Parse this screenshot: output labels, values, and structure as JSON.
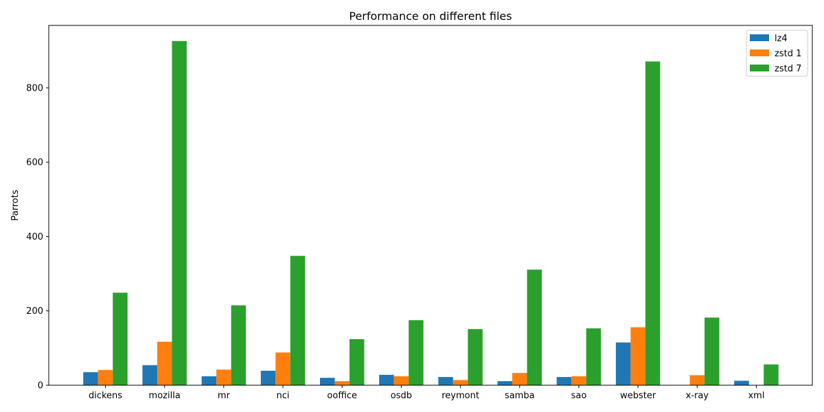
{
  "chart_data": {
    "type": "bar",
    "title": "Performance on different files",
    "xlabel": "",
    "ylabel": "Parrots",
    "categories": [
      "dickens",
      "mozilla",
      "mr",
      "nci",
      "ooffice",
      "osdb",
      "reymont",
      "samba",
      "sao",
      "webster",
      "x-ray",
      "xml"
    ],
    "series": [
      {
        "name": "lz4",
        "color": "#1f77b4",
        "values": [
          35,
          54,
          24,
          39,
          20,
          28,
          22,
          11,
          22,
          115,
          0,
          12
        ]
      },
      {
        "name": "zstd 1",
        "color": "#ff7f0e",
        "values": [
          41,
          117,
          42,
          88,
          11,
          24,
          14,
          33,
          24,
          156,
          27,
          0
        ]
      },
      {
        "name": "zstd 7",
        "color": "#2ca02c",
        "values": [
          249,
          926,
          215,
          348,
          124,
          175,
          151,
          311,
          153,
          871,
          182,
          56
        ]
      }
    ],
    "ylim": [
      0,
      968
    ],
    "yticks": [
      0,
      200,
      400,
      600,
      800
    ],
    "legend": "top-right",
    "grid": false
  }
}
